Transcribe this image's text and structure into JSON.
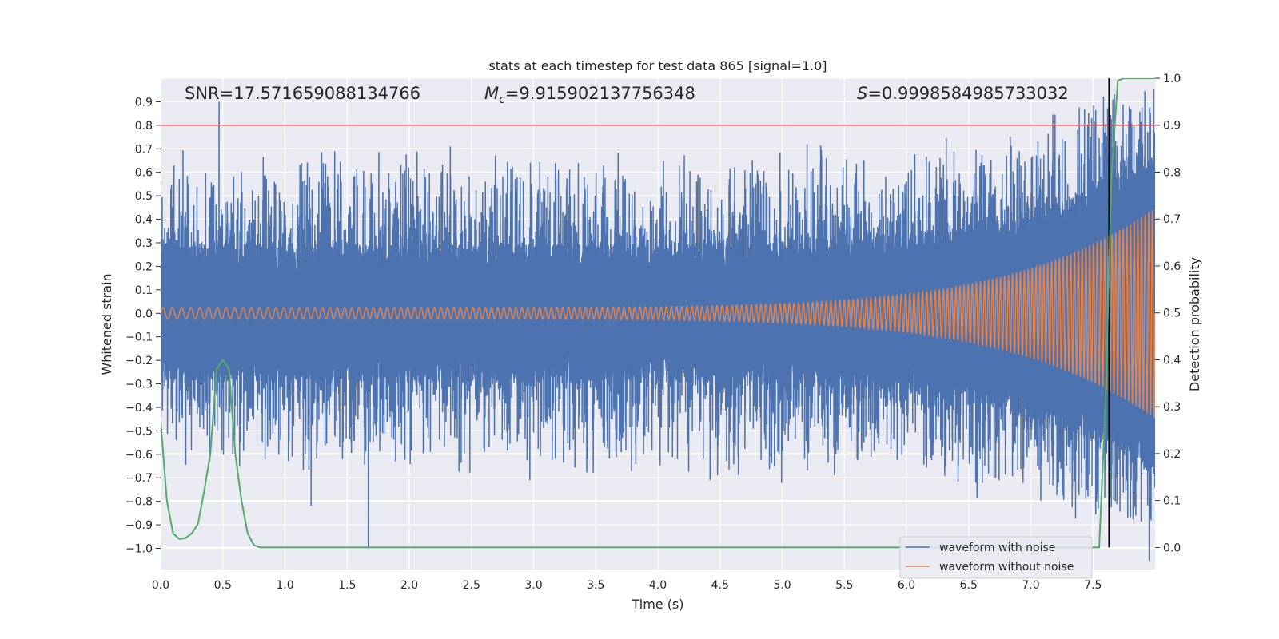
{
  "chart_data": {
    "type": "line",
    "title": "stats at each timestep for test data 865 [signal=1.0]",
    "xlabel": "Time (s)",
    "ylabel": "Whitened strain",
    "y2label": "Detection probability",
    "xlim": [
      0.0,
      8.0
    ],
    "ylim": [
      -1.09,
      1.0
    ],
    "y2lim": [
      -0.047,
      1.0
    ],
    "x_ticks": [
      0.0,
      0.5,
      1.0,
      1.5,
      2.0,
      2.5,
      3.0,
      3.5,
      4.0,
      4.5,
      5.0,
      5.5,
      6.0,
      6.5,
      7.0,
      7.5
    ],
    "y_ticks": [
      0.9,
      0.8,
      0.7,
      0.6,
      0.5,
      0.4,
      0.3,
      0.2,
      0.1,
      0.0,
      -0.1,
      -0.2,
      -0.3,
      -0.4,
      -0.5,
      -0.6,
      -0.7,
      -0.8,
      -0.9,
      -1.0
    ],
    "y2_ticks": [
      1.0,
      0.9,
      0.8,
      0.7,
      0.6,
      0.5,
      0.4,
      0.3,
      0.2,
      0.1,
      0.0
    ],
    "stats": {
      "snr_label": "SNR=17.571659088134766",
      "mc_symbol": "M",
      "mc_subscript": "c",
      "mc_value": "=9.915902137756348",
      "s_symbol": "S",
      "s_value": "=0.9998584985733032"
    },
    "threshold_line": {
      "axis": "right",
      "value": 0.9,
      "color": "#c44e52"
    },
    "event_marker": {
      "x": 7.63,
      "y2_from": 0.0,
      "y2_to": 1.0,
      "color": "#000000"
    },
    "series": [
      {
        "name": "waveform with noise",
        "color": "#4c72b0",
        "description": "dense noisy strain trace",
        "peaks_up": [
          [
            0.47,
            0.9
          ],
          [
            1.4,
            0.69
          ],
          [
            2.33,
            0.71
          ],
          [
            5.2,
            0.72
          ],
          [
            7.96,
            0.73
          ]
        ],
        "peaks_down": [
          [
            1.67,
            -1.0
          ],
          [
            1.21,
            -0.82
          ],
          [
            2.97,
            -0.71
          ],
          [
            4.42,
            -0.71
          ]
        ]
      },
      {
        "name": "waveform without noise",
        "color": "#dd8452",
        "description": "chirp with growing amplitude",
        "amplitude_start": 0.025,
        "amplitude_end": 0.45,
        "cycles": 190
      },
      {
        "name": "detection probability",
        "color": "#55a868",
        "axis": "right",
        "x": [
          0.0,
          0.05,
          0.1,
          0.15,
          0.2,
          0.25,
          0.3,
          0.35,
          0.4,
          0.45,
          0.5,
          0.55,
          0.6,
          0.65,
          0.7,
          0.75,
          0.8,
          1.0,
          2.0,
          3.0,
          4.0,
          5.0,
          6.0,
          7.0,
          7.55,
          7.6,
          7.65,
          7.7,
          7.75,
          8.0
        ],
        "y": [
          0.27,
          0.1,
          0.03,
          0.018,
          0.02,
          0.03,
          0.05,
          0.12,
          0.2,
          0.38,
          0.4,
          0.38,
          0.2,
          0.1,
          0.03,
          0.005,
          0.0,
          0.0,
          0.0,
          0.0,
          0.0,
          0.0,
          0.0,
          0.0,
          0.0,
          0.3,
          0.8,
          0.995,
          1.0,
          1.0
        ]
      }
    ],
    "legend": {
      "position": "lower-right",
      "entries": [
        {
          "label": "waveform with noise",
          "color": "#4c72b0"
        },
        {
          "label": "waveform without noise",
          "color": "#dd8452"
        }
      ]
    }
  }
}
